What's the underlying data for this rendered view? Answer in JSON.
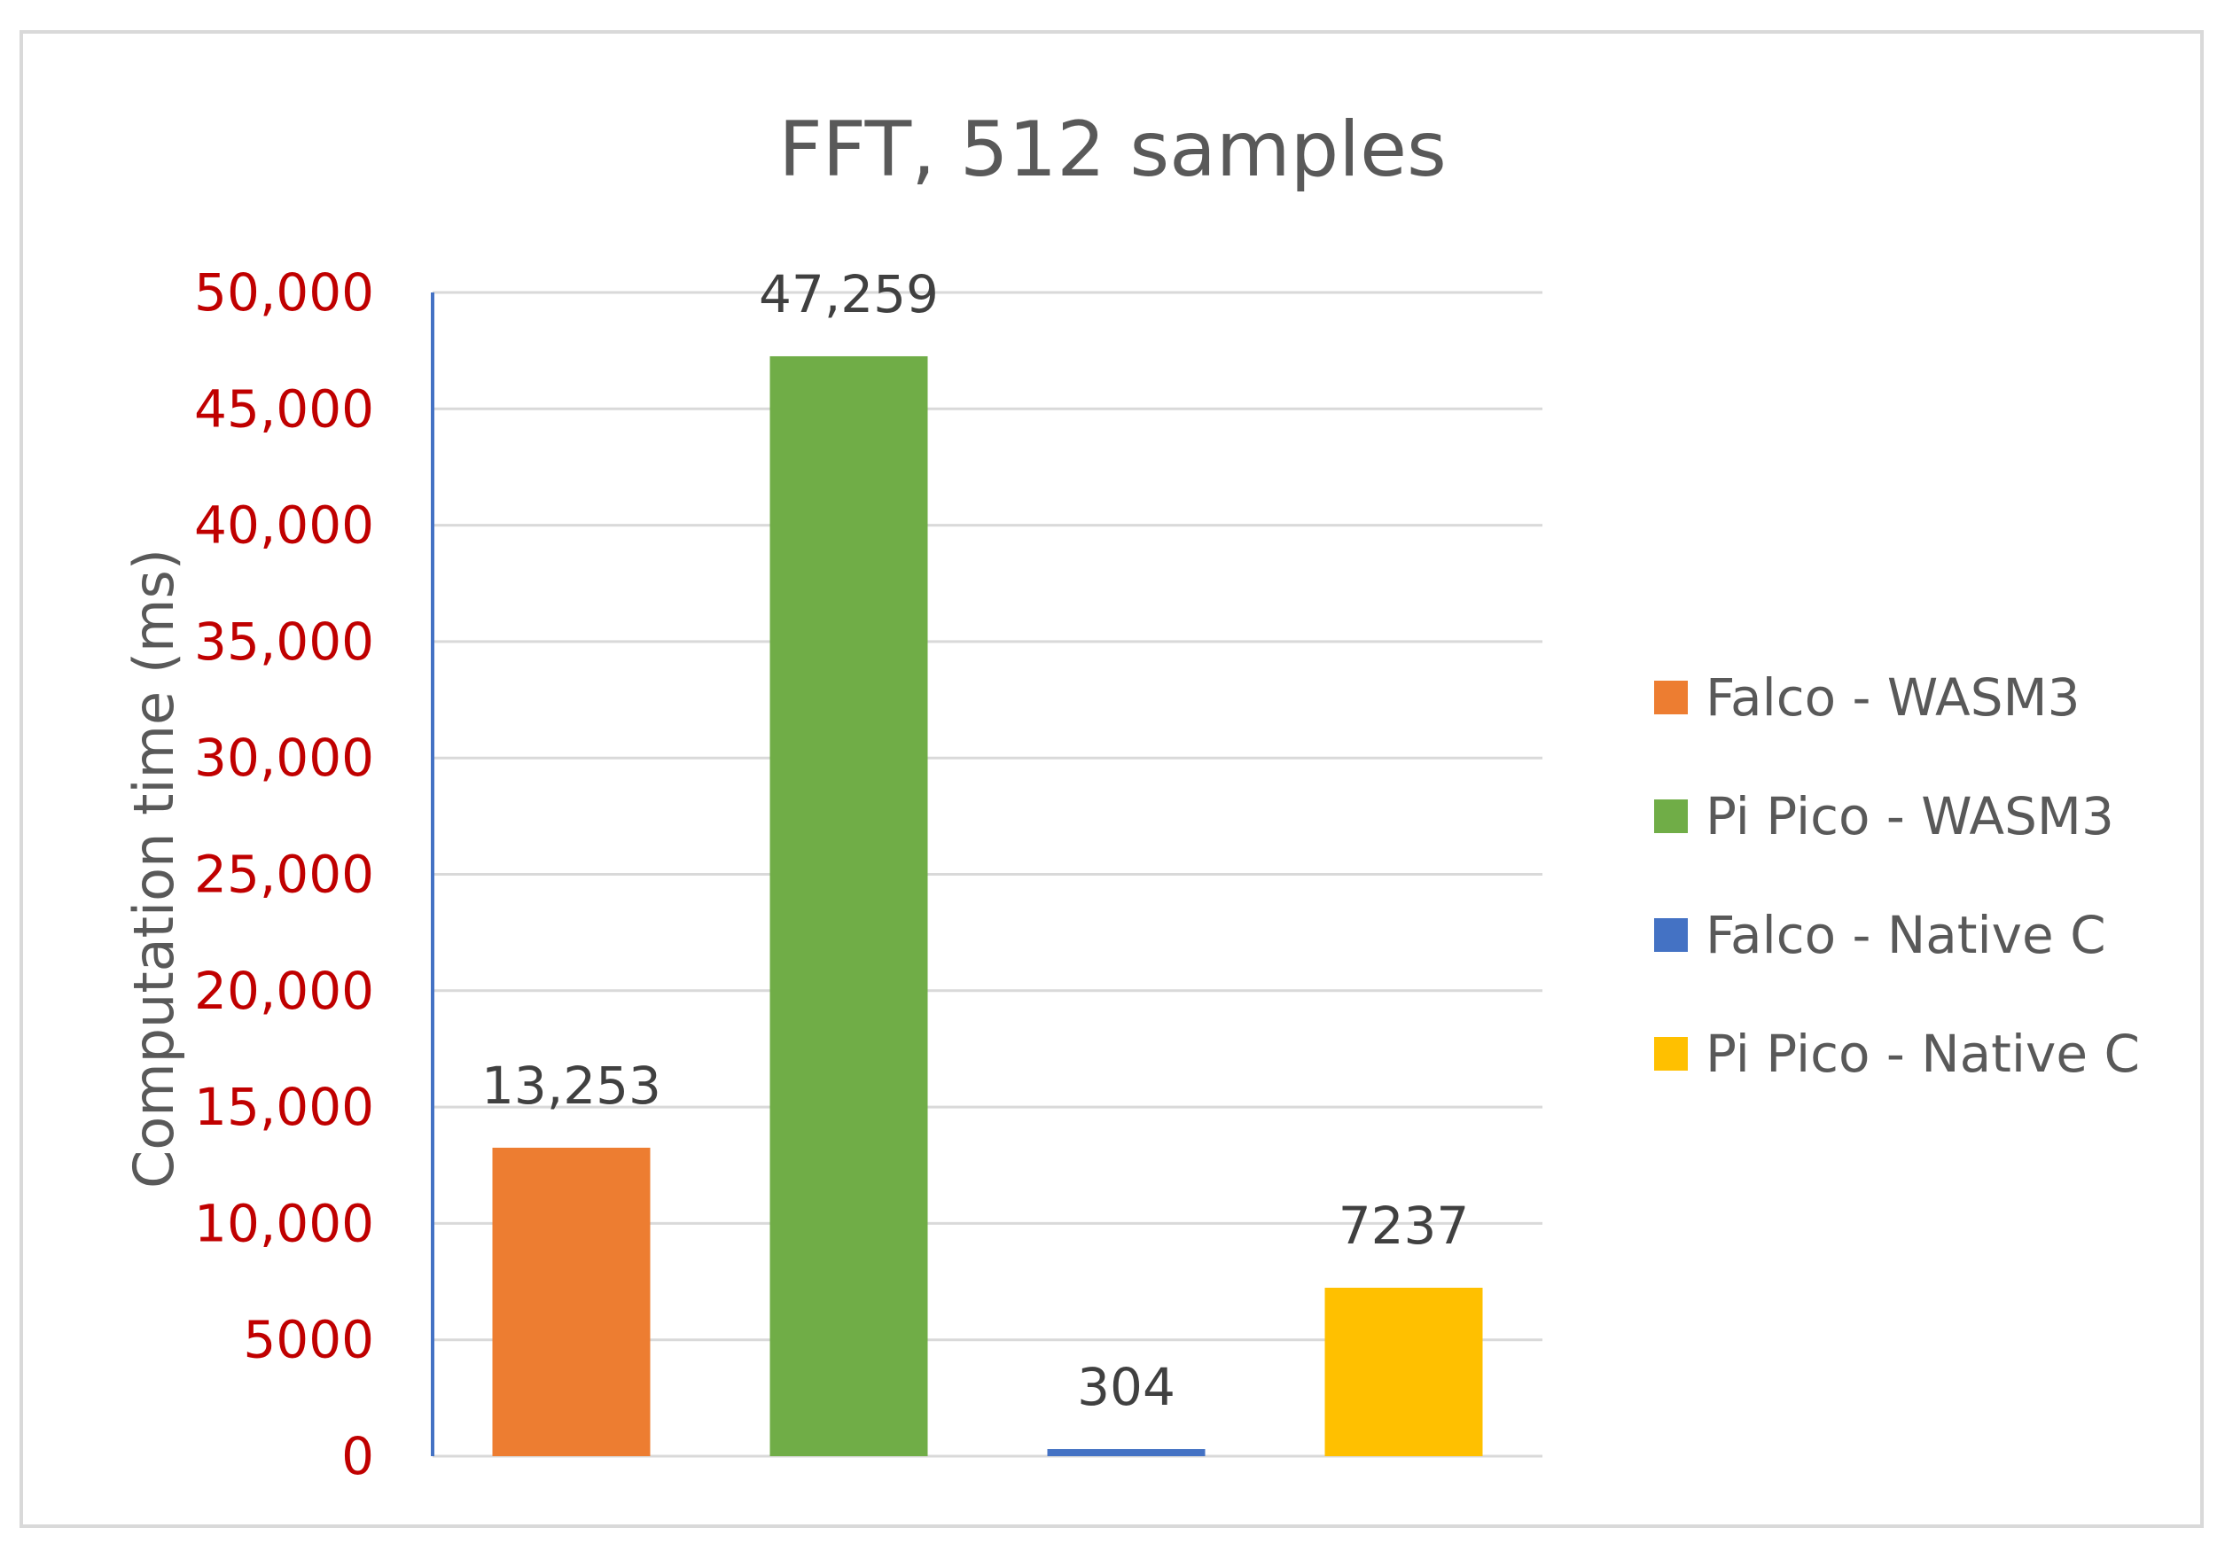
{
  "chart_data": {
    "type": "bar",
    "title": "FFT, 512 samples",
    "xlabel": "",
    "ylabel": "Computation time (ms)",
    "ylim": [
      0,
      50000
    ],
    "yticks": [
      0,
      5000,
      10000,
      15000,
      20000,
      25000,
      30000,
      35000,
      40000,
      45000,
      50000
    ],
    "ytick_labels": [
      "0",
      "5000",
      "10,000",
      "15,000",
      "20,000",
      "25,000",
      "30,000",
      "35,000",
      "40,000",
      "45,000",
      "50,000"
    ],
    "grid": true,
    "legend_position": "right",
    "series": [
      {
        "name": "Falco - WASM3",
        "value": 13253,
        "label": "13,253",
        "color": "#ed7d31"
      },
      {
        "name": "Pi Pico - WASM3",
        "value": 47259,
        "label": "47,259",
        "color": "#70ad47"
      },
      {
        "name": "Falco - Native C",
        "value": 304,
        "label": "304",
        "color": "#4472c4"
      },
      {
        "name": "Pi Pico - Native C",
        "value": 7237,
        "label": "7237",
        "color": "#ffc000"
      }
    ],
    "colors": {
      "axis_line": "#4472c4",
      "grid": "#d9d9d9",
      "tick_text": "#c00000",
      "text": "#595959"
    }
  }
}
